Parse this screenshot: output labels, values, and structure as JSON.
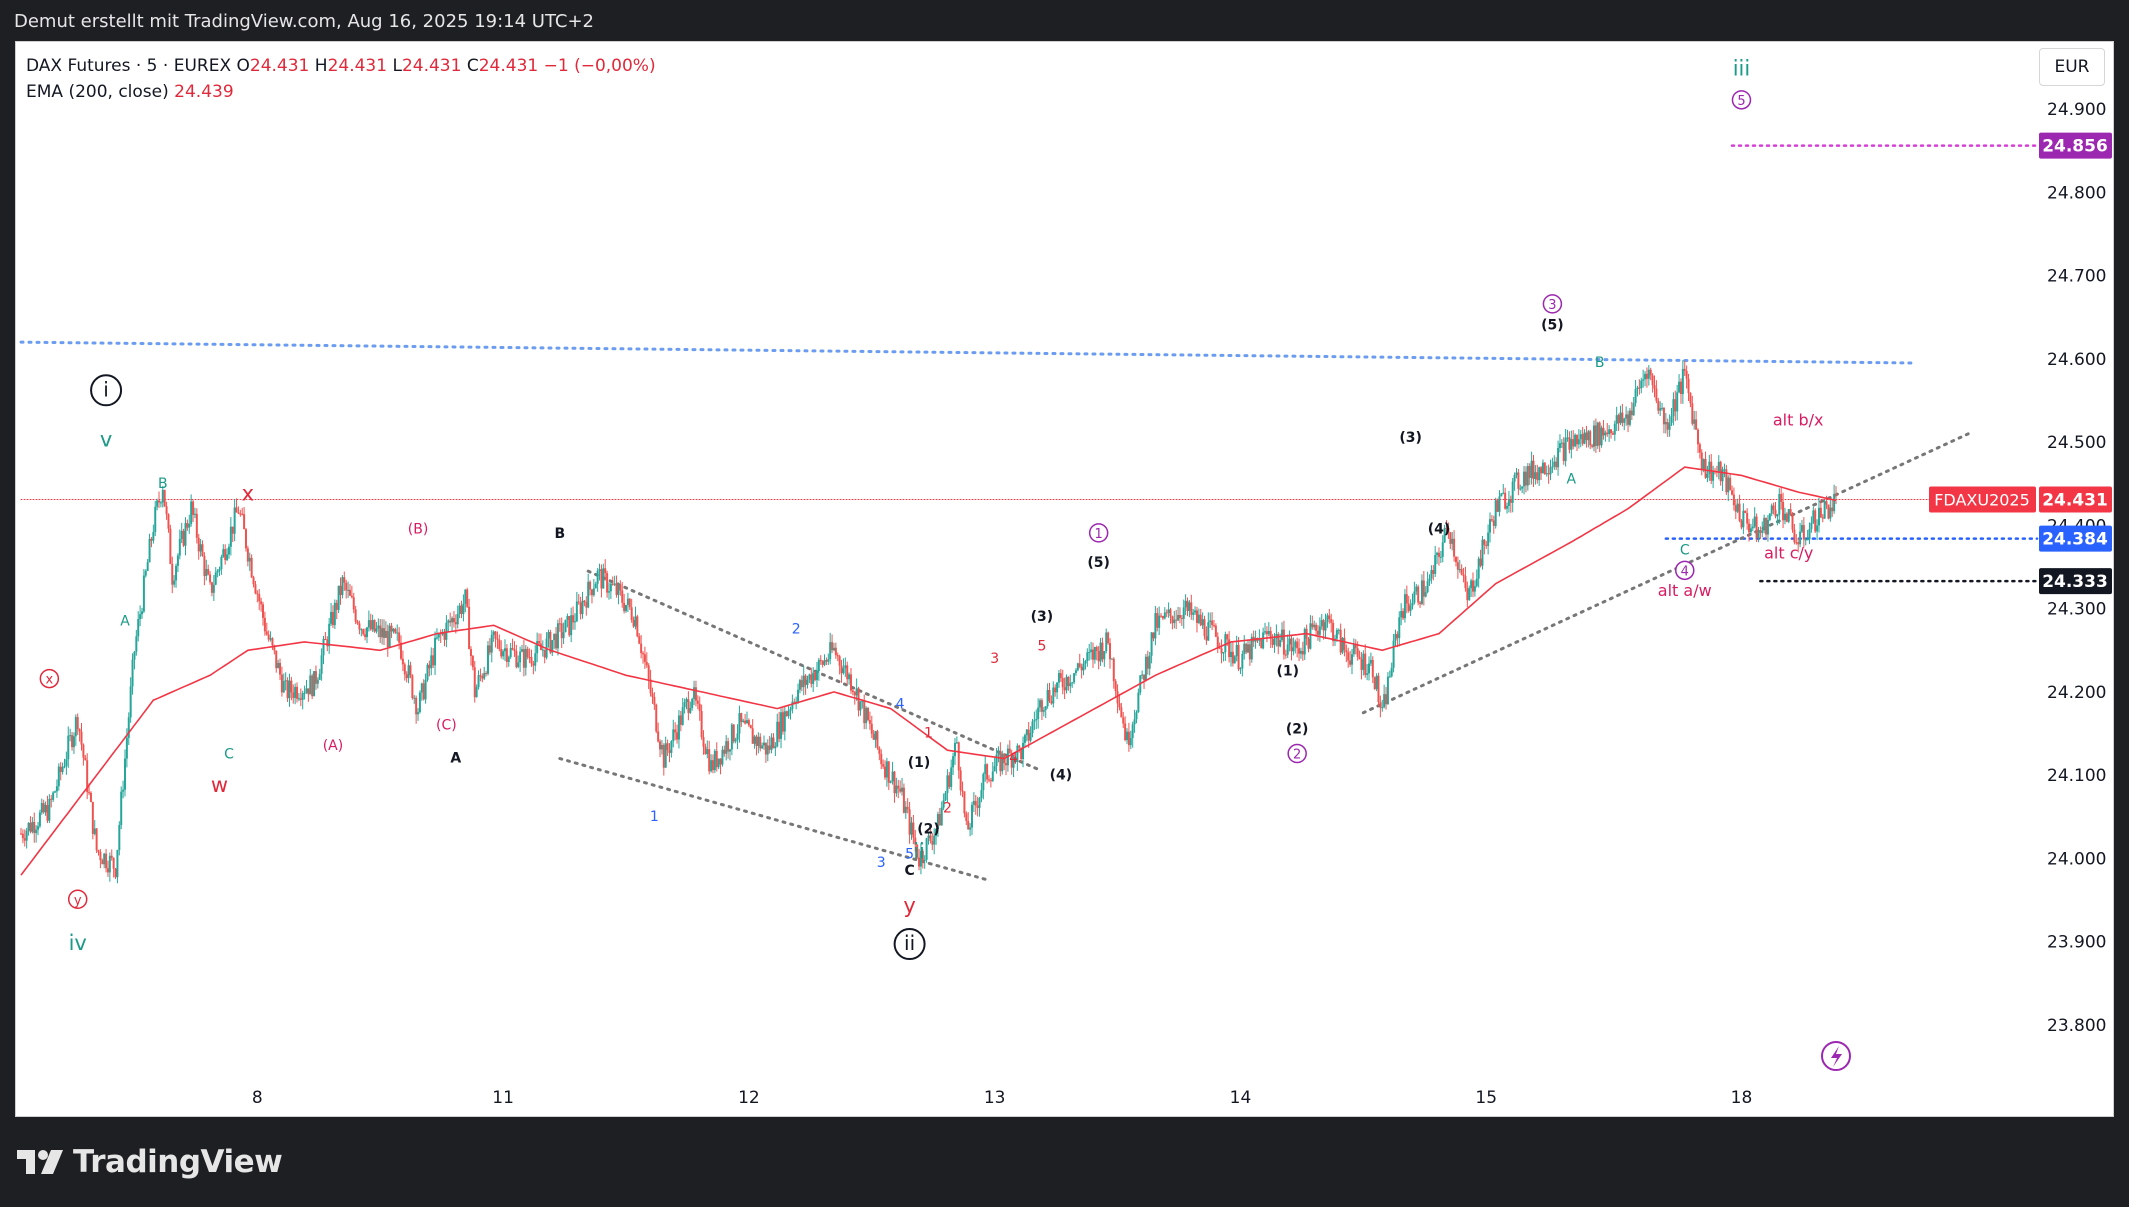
{
  "header": {
    "text": "Demut erstellt mit TradingView.com, Aug 16, 2025 19:14 UTC+2"
  },
  "legend": {
    "line1_prefix": "DAX Futures · 5 · EUREX",
    "ohlc": [
      {
        "key": "O",
        "value": "24.431"
      },
      {
        "key": "H",
        "value": "24.431"
      },
      {
        "key": "L",
        "value": "24.431"
      },
      {
        "key": "C",
        "value": "24.431"
      }
    ],
    "change": "−1 (−0,00%)",
    "ema_label": "EMA (200, close)",
    "ema_value": "24.439"
  },
  "currency": "EUR",
  "footer": {
    "logo_text": "TradingView"
  },
  "colors": {
    "up": "#26a69a",
    "down": "#ef5350",
    "ema": "#f23645",
    "blue_dot": "#6b9cf0",
    "purple": "#9c27b0",
    "black": "#131722",
    "teal_label": "#1a9a87",
    "red_label": "#e0293a",
    "pink_label": "#d81b60",
    "blue_label": "#2962ff"
  },
  "chart_data": {
    "type": "candlestick",
    "title": "DAX Futures · 5 · EUREX",
    "x_ticks": [
      "8",
      "11",
      "12",
      "13",
      "14",
      "15",
      "18"
    ],
    "y_ticks": [
      "24.900",
      "24.800",
      "24.700",
      "24.600",
      "24.500",
      "24.400",
      "24.300",
      "24.200",
      "24.100",
      "24.000",
      "23.900",
      "23.800"
    ],
    "ylim": [
      23.73,
      24.99
    ],
    "price_tags": [
      {
        "label": "24.856",
        "value": 24.856,
        "bg": "#9c27b0",
        "fg": "#ffffff"
      },
      {
        "label": "24.431",
        "value": 24.431,
        "bg": "#f23645",
        "fg": "#ffffff",
        "name": "FDAXU2025"
      },
      {
        "label": "24.384",
        "value": 24.384,
        "bg": "#2962ff",
        "fg": "#ffffff"
      },
      {
        "label": "24.333",
        "value": 24.333,
        "bg": "#131722",
        "fg": "#ffffff"
      }
    ],
    "price_path_key_points": [
      {
        "t": 0,
        "p": 24.03
      },
      {
        "t": 3,
        "p": 24.06
      },
      {
        "t": 6,
        "p": 24.17
      },
      {
        "t": 8,
        "p": 24.01
      },
      {
        "t": 10,
        "p": 23.99
      },
      {
        "t": 12,
        "p": 24.25
      },
      {
        "t": 14,
        "p": 24.4
      },
      {
        "t": 15,
        "p": 24.45
      },
      {
        "t": 16,
        "p": 24.34
      },
      {
        "t": 18,
        "p": 24.42
      },
      {
        "t": 20,
        "p": 24.32
      },
      {
        "t": 23,
        "p": 24.42
      },
      {
        "t": 26,
        "p": 24.27
      },
      {
        "t": 28,
        "p": 24.2
      },
      {
        "t": 31,
        "p": 24.21
      },
      {
        "t": 34,
        "p": 24.33
      },
      {
        "t": 36,
        "p": 24.28
      },
      {
        "t": 40,
        "p": 24.26
      },
      {
        "t": 42,
        "p": 24.18
      },
      {
        "t": 44,
        "p": 24.26
      },
      {
        "t": 47,
        "p": 24.31
      },
      {
        "t": 48,
        "p": 24.2
      },
      {
        "t": 50,
        "p": 24.26
      },
      {
        "t": 53,
        "p": 24.24
      },
      {
        "t": 55,
        "p": 24.25
      },
      {
        "t": 58,
        "p": 24.28
      },
      {
        "t": 61,
        "p": 24.34
      },
      {
        "t": 63,
        "p": 24.32
      },
      {
        "t": 65,
        "p": 24.29
      },
      {
        "t": 68,
        "p": 24.12
      },
      {
        "t": 71,
        "p": 24.2
      },
      {
        "t": 73,
        "p": 24.11
      },
      {
        "t": 76,
        "p": 24.16
      },
      {
        "t": 79,
        "p": 24.13
      },
      {
        "t": 82,
        "p": 24.2
      },
      {
        "t": 86,
        "p": 24.25
      },
      {
        "t": 88,
        "p": 24.21
      },
      {
        "t": 91,
        "p": 24.12
      },
      {
        "t": 93,
        "p": 24.08
      },
      {
        "t": 95,
        "p": 24.0
      },
      {
        "t": 97,
        "p": 24.04
      },
      {
        "t": 99,
        "p": 24.14
      },
      {
        "t": 100,
        "p": 24.03
      },
      {
        "t": 102,
        "p": 24.1
      },
      {
        "t": 104,
        "p": 24.12
      },
      {
        "t": 106,
        "p": 24.13
      },
      {
        "t": 108,
        "p": 24.19
      },
      {
        "t": 111,
        "p": 24.22
      },
      {
        "t": 113,
        "p": 24.24
      },
      {
        "t": 115,
        "p": 24.26
      },
      {
        "t": 117,
        "p": 24.14
      },
      {
        "t": 120,
        "p": 24.28
      },
      {
        "t": 123,
        "p": 24.3
      },
      {
        "t": 126,
        "p": 24.27
      },
      {
        "t": 129,
        "p": 24.24
      },
      {
        "t": 132,
        "p": 24.27
      },
      {
        "t": 135,
        "p": 24.25
      },
      {
        "t": 138,
        "p": 24.29
      },
      {
        "t": 140,
        "p": 24.25
      },
      {
        "t": 143,
        "p": 24.23
      },
      {
        "t": 144,
        "p": 24.17
      },
      {
        "t": 146,
        "p": 24.3
      },
      {
        "t": 149,
        "p": 24.33
      },
      {
        "t": 151,
        "p": 24.4
      },
      {
        "t": 153,
        "p": 24.31
      },
      {
        "t": 156,
        "p": 24.42
      },
      {
        "t": 159,
        "p": 24.46
      },
      {
        "t": 161,
        "p": 24.47
      },
      {
        "t": 164,
        "p": 24.5
      },
      {
        "t": 167,
        "p": 24.51
      },
      {
        "t": 170,
        "p": 24.53
      },
      {
        "t": 172,
        "p": 24.59
      },
      {
        "t": 174,
        "p": 24.52
      },
      {
        "t": 176,
        "p": 24.58
      },
      {
        "t": 178,
        "p": 24.47
      },
      {
        "t": 180,
        "p": 24.46
      },
      {
        "t": 182,
        "p": 24.41
      },
      {
        "t": 184,
        "p": 24.39
      },
      {
        "t": 186,
        "p": 24.43
      },
      {
        "t": 188,
        "p": 24.38
      },
      {
        "t": 190,
        "p": 24.41
      },
      {
        "t": 192,
        "p": 24.43
      }
    ],
    "ema_key_points": [
      {
        "t": 0,
        "p": 23.98
      },
      {
        "t": 8,
        "p": 24.1
      },
      {
        "t": 14,
        "p": 24.19
      },
      {
        "t": 20,
        "p": 24.22
      },
      {
        "t": 24,
        "p": 24.25
      },
      {
        "t": 30,
        "p": 24.26
      },
      {
        "t": 38,
        "p": 24.25
      },
      {
        "t": 44,
        "p": 24.27
      },
      {
        "t": 50,
        "p": 24.28
      },
      {
        "t": 56,
        "p": 24.25
      },
      {
        "t": 64,
        "p": 24.22
      },
      {
        "t": 72,
        "p": 24.2
      },
      {
        "t": 80,
        "p": 24.18
      },
      {
        "t": 86,
        "p": 24.2
      },
      {
        "t": 92,
        "p": 24.18
      },
      {
        "t": 98,
        "p": 24.13
      },
      {
        "t": 104,
        "p": 24.12
      },
      {
        "t": 112,
        "p": 24.17
      },
      {
        "t": 120,
        "p": 24.22
      },
      {
        "t": 128,
        "p": 24.26
      },
      {
        "t": 136,
        "p": 24.27
      },
      {
        "t": 144,
        "p": 24.25
      },
      {
        "t": 150,
        "p": 24.27
      },
      {
        "t": 156,
        "p": 24.33
      },
      {
        "t": 164,
        "p": 24.38
      },
      {
        "t": 170,
        "p": 24.42
      },
      {
        "t": 176,
        "p": 24.47
      },
      {
        "t": 182,
        "p": 24.46
      },
      {
        "t": 188,
        "p": 24.44
      },
      {
        "t": 192,
        "p": 24.43
      }
    ],
    "horizontal_lines": [
      {
        "value": 24.856,
        "color": "#d63fd6",
        "from_t": 181,
        "to": "end"
      },
      {
        "value": 24.431,
        "color": "#f23645",
        "from_t": 0,
        "to": "end",
        "dotted_fine": true
      },
      {
        "value": 24.384,
        "color": "#2962ff",
        "from_t": 174,
        "to": "end"
      },
      {
        "value": 24.333,
        "color": "#131722",
        "from_t": 184,
        "to": "end"
      }
    ],
    "trend_lines": [
      {
        "color": "#6b9cf0",
        "t1": 0,
        "p1": 24.62,
        "t2": 200,
        "p2": 24.595
      },
      {
        "color": "#777",
        "t1": 60,
        "p1": 24.345,
        "t2": 108,
        "p2": 24.105
      },
      {
        "color": "#777",
        "t1": 57,
        "p1": 24.12,
        "t2": 102,
        "p2": 23.975
      },
      {
        "color": "#777",
        "t1": 142,
        "p1": 24.175,
        "t2": 206,
        "p2": 24.51
      }
    ],
    "wave_labels": [
      {
        "text": "i",
        "t": 9,
        "p": 24.555,
        "color": "#131722",
        "circle": "double"
      },
      {
        "text": "v",
        "t": 9,
        "p": 24.495,
        "color": "#1a9a87"
      },
      {
        "text": "B",
        "t": 15,
        "p": 24.445,
        "color": "#1a9a87"
      },
      {
        "text": "x",
        "t": 24,
        "p": 24.43,
        "color": "#e0293a"
      },
      {
        "text": "A",
        "t": 11,
        "p": 24.28,
        "color": "#1a9a87"
      },
      {
        "text": "x",
        "t": 3,
        "p": 24.21,
        "color": "#e0293a",
        "circle": "single"
      },
      {
        "text": "C",
        "t": 22,
        "p": 24.12,
        "color": "#1a9a87"
      },
      {
        "text": "w",
        "t": 21,
        "p": 24.08,
        "color": "#e0293a"
      },
      {
        "text": "y",
        "t": 6,
        "p": 23.945,
        "color": "#e0293a",
        "circle": "single"
      },
      {
        "text": "iv",
        "t": 6,
        "p": 23.89,
        "color": "#1a9a87"
      },
      {
        "text": "(B)",
        "t": 42,
        "p": 24.39,
        "color": "#d81b60"
      },
      {
        "text": "(A)",
        "t": 33,
        "p": 24.13,
        "color": "#d81b60"
      },
      {
        "text": "(C)",
        "t": 45,
        "p": 24.155,
        "color": "#d81b60"
      },
      {
        "text": "A",
        "t": 46,
        "p": 24.115,
        "color": "#131722"
      },
      {
        "text": "B",
        "t": 57,
        "p": 24.385,
        "color": "#131722"
      },
      {
        "text": "1",
        "t": 67,
        "p": 24.045,
        "color": "#2962ff"
      },
      {
        "text": "2",
        "t": 82,
        "p": 24.27,
        "color": "#2962ff"
      },
      {
        "text": "3",
        "t": 91,
        "p": 23.99,
        "color": "#2962ff"
      },
      {
        "text": "4",
        "t": 93,
        "p": 24.18,
        "color": "#2962ff"
      },
      {
        "text": "5",
        "t": 94,
        "p": 24.0,
        "color": "#2962ff"
      },
      {
        "text": "C",
        "t": 94,
        "p": 23.98,
        "color": "#131722"
      },
      {
        "text": "ii",
        "t": 95,
        "p": 24.0,
        "color": "#1a9a87"
      },
      {
        "text": "y",
        "t": 94,
        "p": 23.935,
        "color": "#e0293a"
      },
      {
        "text": "ii",
        "t": 94,
        "p": 23.89,
        "color": "#131722",
        "circle": "double"
      },
      {
        "text": "1",
        "t": 96,
        "p": 24.145,
        "color": "#e0293a"
      },
      {
        "text": "(1)",
        "t": 95,
        "p": 24.11,
        "color": "#131722"
      },
      {
        "text": "(2)",
        "t": 96,
        "p": 24.03,
        "color": "#131722"
      },
      {
        "text": "2",
        "t": 98,
        "p": 24.055,
        "color": "#e0293a"
      },
      {
        "text": "3",
        "t": 103,
        "p": 24.235,
        "color": "#e0293a"
      },
      {
        "text": "4",
        "t": 105,
        "p": 24.115,
        "color": "#e0293a"
      },
      {
        "text": "5",
        "t": 108,
        "p": 24.25,
        "color": "#e0293a"
      },
      {
        "text": "(3)",
        "t": 108,
        "p": 24.285,
        "color": "#131722"
      },
      {
        "text": "(4)",
        "t": 110,
        "p": 24.095,
        "color": "#131722"
      },
      {
        "text": "1",
        "t": 114,
        "p": 24.385,
        "color": "#9c27b0",
        "circle": "single"
      },
      {
        "text": "(5)",
        "t": 114,
        "p": 24.35,
        "color": "#131722"
      },
      {
        "text": "(1)",
        "t": 134,
        "p": 24.22,
        "color": "#131722"
      },
      {
        "text": "(2)",
        "t": 135,
        "p": 24.15,
        "color": "#131722"
      },
      {
        "text": "2",
        "t": 135,
        "p": 24.12,
        "color": "#9c27b0",
        "circle": "single"
      },
      {
        "text": "(3)",
        "t": 147,
        "p": 24.5,
        "color": "#131722"
      },
      {
        "text": "(4)",
        "t": 150,
        "p": 24.39,
        "color": "#131722"
      },
      {
        "text": "3",
        "t": 162,
        "p": 24.66,
        "color": "#9c27b0",
        "circle": "single"
      },
      {
        "text": "(5)",
        "t": 162,
        "p": 24.635,
        "color": "#131722"
      },
      {
        "text": "B",
        "t": 167,
        "p": 24.59,
        "color": "#1a9a87"
      },
      {
        "text": "A",
        "t": 164,
        "p": 24.45,
        "color": "#1a9a87"
      },
      {
        "text": "C",
        "t": 176,
        "p": 24.365,
        "color": "#1a9a87"
      },
      {
        "text": "4",
        "t": 176,
        "p": 24.34,
        "color": "#9c27b0",
        "circle": "single"
      },
      {
        "text": "iii",
        "t": 182,
        "p": 24.94,
        "color": "#1a9a87"
      },
      {
        "text": "5",
        "t": 182,
        "p": 24.905,
        "color": "#9c27b0",
        "circle": "single"
      },
      {
        "text": "alt b/x",
        "t": 188,
        "p": 24.52,
        "color": "#d81b60"
      },
      {
        "text": "alt c/y",
        "t": 187,
        "p": 24.36,
        "color": "#d81b60"
      },
      {
        "text": "alt a/w",
        "t": 176,
        "p": 24.315,
        "color": "#d81b60"
      }
    ]
  }
}
